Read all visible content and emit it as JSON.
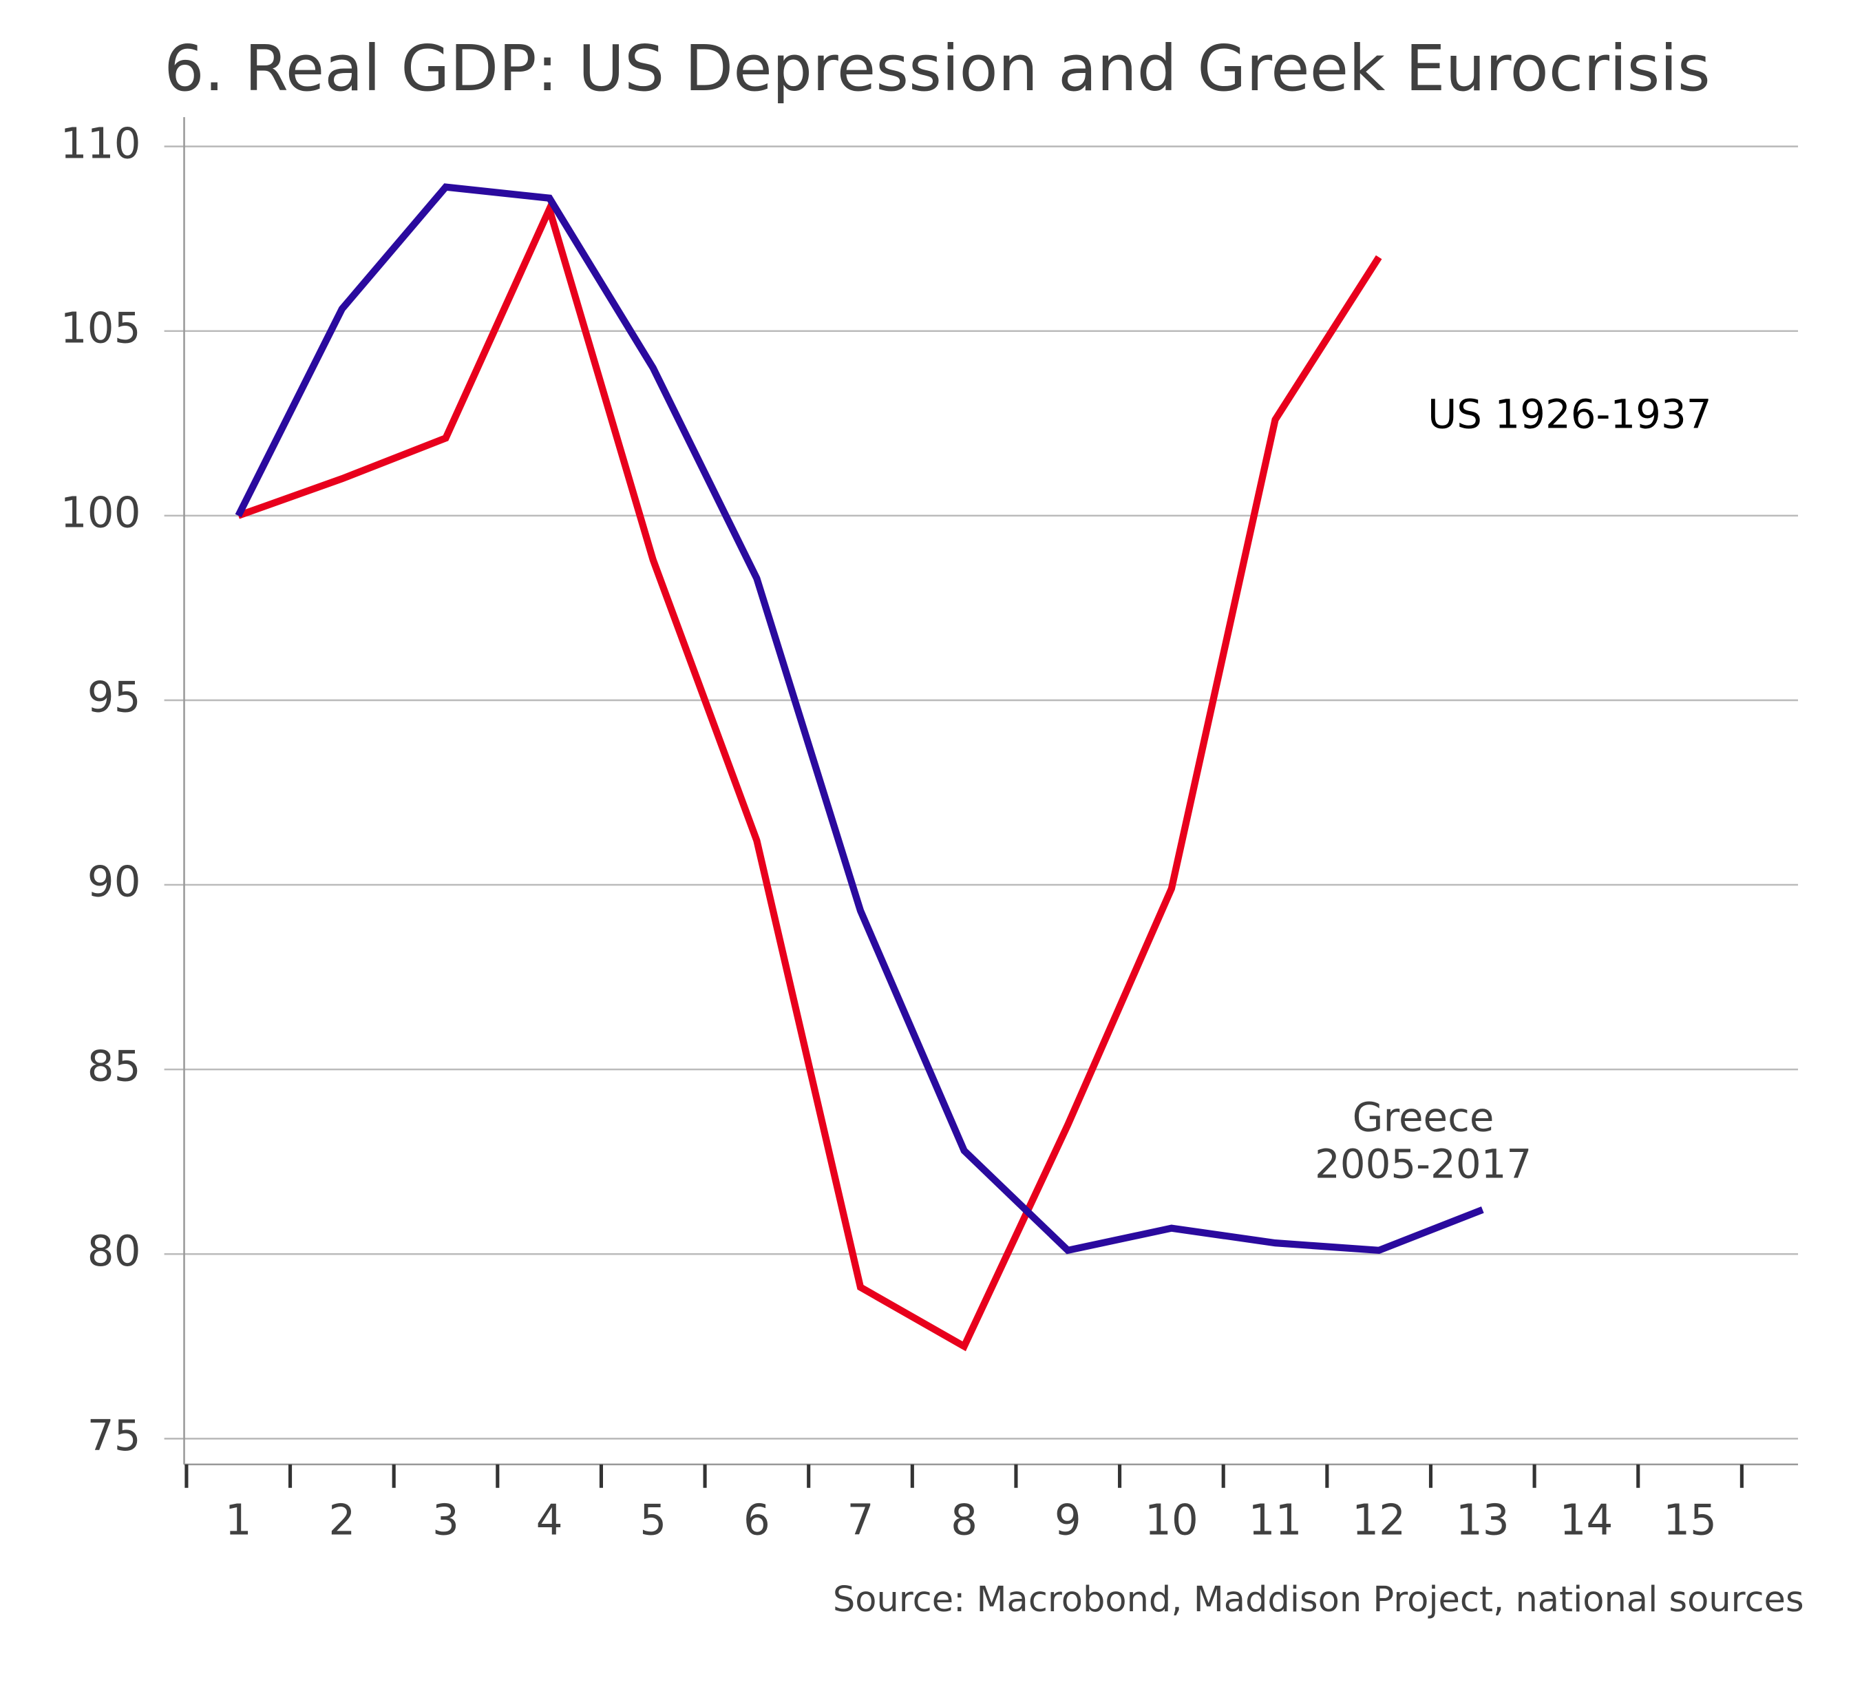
{
  "chart_data": {
    "type": "line",
    "title": "6. Real GDP: US Depression and Greek Eurocrisis",
    "source": "Source: Macrobond, Maddison Project, national sources",
    "categories": [
      "1",
      "2",
      "3",
      "4",
      "5",
      "6",
      "7",
      "8",
      "9",
      "10",
      "11",
      "12",
      "13",
      "14",
      "15"
    ],
    "series": [
      {
        "color": "#e8001c",
        "values": [
          100,
          101,
          102.1,
          108.3,
          98.8,
          91.2,
          79.1,
          77.5,
          83.5,
          89.9,
          102.6,
          107,
          null,
          null,
          null
        ]
      },
      {
        "color": "#2a0a9e",
        "values": [
          100,
          105.6,
          108.9,
          108.6,
          104,
          98.3,
          89.3,
          82.8,
          80.1,
          80.7,
          80.3,
          80.1,
          81.2,
          null,
          null
        ]
      }
    ],
    "annotations": [
      {
        "lines": [
          "US 1926-1937"
        ],
        "color": "#000000"
      },
      {
        "lines": [
          "Greece",
          "2005-2017"
        ],
        "color": "#404040"
      }
    ],
    "ylim": [
      75,
      110
    ],
    "yticks": [
      75,
      80,
      85,
      90,
      95,
      100,
      105,
      110
    ],
    "grid": true
  }
}
